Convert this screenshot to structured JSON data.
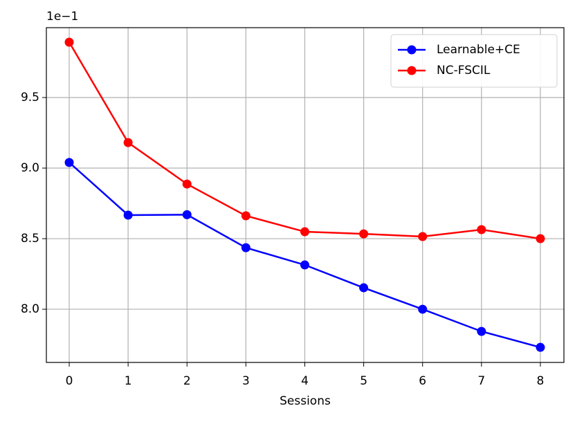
{
  "chart_data": {
    "type": "line",
    "x_label": "Sessions",
    "y_offset_label": "1e−1",
    "x": [
      0,
      1,
      2,
      3,
      4,
      5,
      6,
      7,
      8
    ],
    "series": [
      {
        "name": "Learnable+CE",
        "color": "#0000ff",
        "values": [
          9.04,
          8.667,
          8.67,
          8.436,
          8.314,
          8.152,
          8.0,
          7.843,
          7.73
        ]
      },
      {
        "name": "NC-FSCIL",
        "color": "#ff0000",
        "values": [
          9.892,
          9.181,
          8.887,
          8.662,
          8.549,
          8.534,
          8.515,
          8.564,
          8.5
        ]
      }
    ],
    "xlim": [
      -0.388,
      8.4
    ],
    "ylim": [
      7.623,
      9.995
    ],
    "xticks": [
      0,
      1,
      2,
      3,
      4,
      5,
      6,
      7,
      8
    ],
    "yticks": [
      {
        "value": 8,
        "label": "8.0"
      },
      8.5,
      {
        "value": 9,
        "label": "9.0"
      },
      9.5
    ],
    "grid": true,
    "legend": "upper right"
  }
}
